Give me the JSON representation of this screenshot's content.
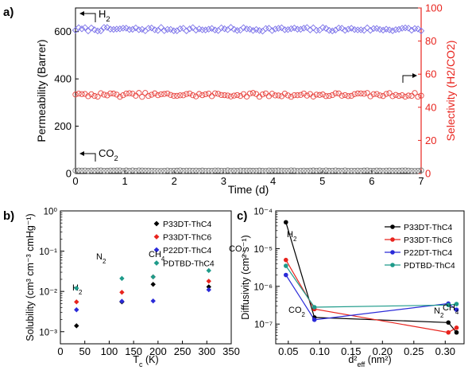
{
  "chart_data": [
    {
      "panel_label": "a)",
      "type": "scatter",
      "xlabel": "Time (d)",
      "ylabel_left": "Permeability (Barrer)",
      "ylabel_right": "Selectivity (H2/CO2)",
      "xlim": [
        0,
        7
      ],
      "ylim_left": [
        0,
        700
      ],
      "ylim_right": [
        0,
        100
      ],
      "x_ticks": [
        "0",
        "1",
        "2",
        "3",
        "4",
        "5",
        "6",
        "7"
      ],
      "y_ticks_left": [
        "0",
        "200",
        "400",
        "600"
      ],
      "y_ticks_right": [
        "0",
        "20",
        "40",
        "60",
        "80",
        "100"
      ],
      "series": [
        {
          "label": "H2",
          "axis": "left",
          "color": "#7b72e9",
          "marker": "open-diamond",
          "mean": 610,
          "jitter": 8,
          "n": 110
        },
        {
          "label": "CO2",
          "axis": "left",
          "color": "#777777",
          "marker": "open-circle",
          "mean": 12,
          "jitter": 1,
          "n": 110
        },
        {
          "series_role": "selectivity",
          "axis": "right",
          "color": "#e8413c",
          "marker": "open-circle",
          "mean": 47.5,
          "jitter": 1.2,
          "n": 110
        }
      ],
      "annotations": [
        {
          "text": "H",
          "sub": "2",
          "series": "H2"
        },
        {
          "text": "CO",
          "sub": "2",
          "series": "CO2"
        }
      ]
    },
    {
      "panel_label": "b)",
      "type": "scatter",
      "xlabel": "T",
      "xlabel_sub": "c",
      "xlabel_unit": " (K)",
      "ylabel": "Solubility (cm³ cm⁻³ cmHg⁻¹)",
      "xlim": [
        0,
        350
      ],
      "ylim": [
        0.0005,
        1
      ],
      "yscale": "log",
      "x_ticks": [
        "0",
        "50",
        "100",
        "150",
        "200",
        "250",
        "300",
        "350"
      ],
      "y_ticks": [
        "10⁻³",
        "10⁻²",
        "10⁻¹",
        "10⁰"
      ],
      "gas_labels": [
        {
          "text": "H",
          "sub": "2"
        },
        {
          "text": "N",
          "sub": "2"
        },
        {
          "text": "CH",
          "sub": "4"
        },
        {
          "text": "CO",
          "sub": "2"
        }
      ],
      "x": [
        33,
        126,
        190,
        304
      ],
      "series": [
        {
          "name": "P33DT-ThC4",
          "color": "#000000",
          "values": [
            0.0014,
            0.0055,
            0.015,
            0.013
          ]
        },
        {
          "name": "P33DT-ThC6",
          "color": "#e8241e",
          "values": [
            0.0055,
            0.0095,
            0.023,
            0.018
          ]
        },
        {
          "name": "P22DT-ThC4",
          "color": "#2a2ad8",
          "values": [
            0.0035,
            0.0057,
            0.0058,
            0.011
          ]
        },
        {
          "name": "PDTBD-ThC4",
          "color": "#1e9b8a",
          "values": [
            0.012,
            0.021,
            0.023,
            0.033
          ]
        }
      ]
    },
    {
      "panel_label": "c)",
      "type": "line",
      "xlabel": "d²",
      "xlabel_sub": "eff",
      "xlabel_unit": " (nm²)",
      "ylabel": "Diffusivity (cm² s⁻¹)",
      "xlim": [
        0.03,
        0.33
      ],
      "ylim": [
        3e-08,
        0.0001
      ],
      "yscale": "log",
      "x_ticks": [
        "0.05",
        "0.10",
        "0.15",
        "0.20",
        "0.25",
        "0.30"
      ],
      "y_ticks": [
        "10⁻⁷",
        "10⁻⁶",
        "10⁻⁵",
        "10⁻⁴"
      ],
      "gas_labels": [
        {
          "text": "H",
          "sub": "2"
        },
        {
          "text": "CO",
          "sub": "2"
        },
        {
          "text": "N",
          "sub": "2"
        },
        {
          "text": "CH",
          "sub": "4"
        }
      ],
      "x": [
        0.0462,
        0.0916,
        0.305,
        0.318
      ],
      "series": [
        {
          "name": "P33DT-ThC4",
          "color": "#000000",
          "values": [
            5e-05,
            1.5e-07,
            1.1e-07,
            6e-08
          ]
        },
        {
          "name": "P33DT-ThC6",
          "color": "#e8241e",
          "values": [
            5e-06,
            2.5e-07,
            6e-08,
            8e-08
          ]
        },
        {
          "name": "P22DT-ThC4",
          "color": "#2a2ad8",
          "values": [
            2e-06,
            1.3e-07,
            3.5e-07,
            2.4e-07
          ]
        },
        {
          "name": "PDTBD-ThC4",
          "color": "#1e9b8a",
          "values": [
            3.5e-06,
            2.8e-07,
            3.2e-07,
            3.4e-07
          ]
        }
      ]
    }
  ]
}
